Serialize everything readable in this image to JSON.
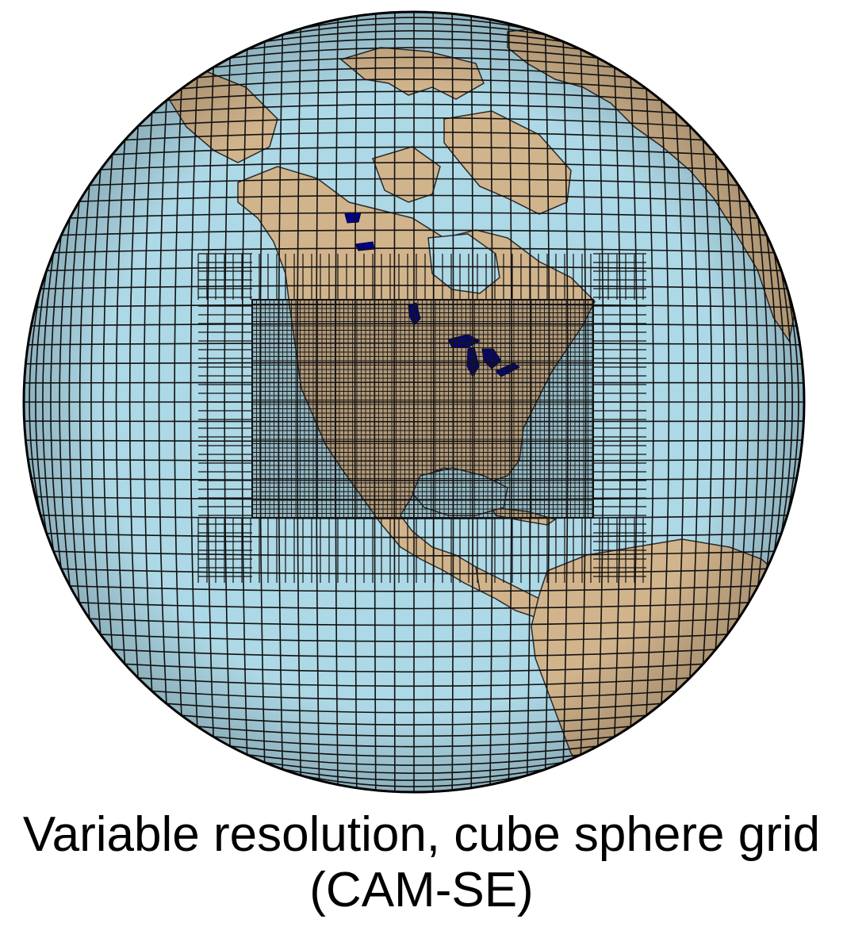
{
  "caption": {
    "line1": "Variable resolution, cube sphere grid",
    "line2": "(CAM-SE)"
  },
  "map": {
    "projection": "orthographic",
    "center_region": "North America",
    "refined_region": "Contiguous United States",
    "grid_type": "cube sphere",
    "colors": {
      "ocean": "#add8e6",
      "land": "#d2b48c",
      "lakes": "#00008b",
      "grid_lines": "#111111",
      "refined_overlay": "#1a1a1a"
    }
  }
}
